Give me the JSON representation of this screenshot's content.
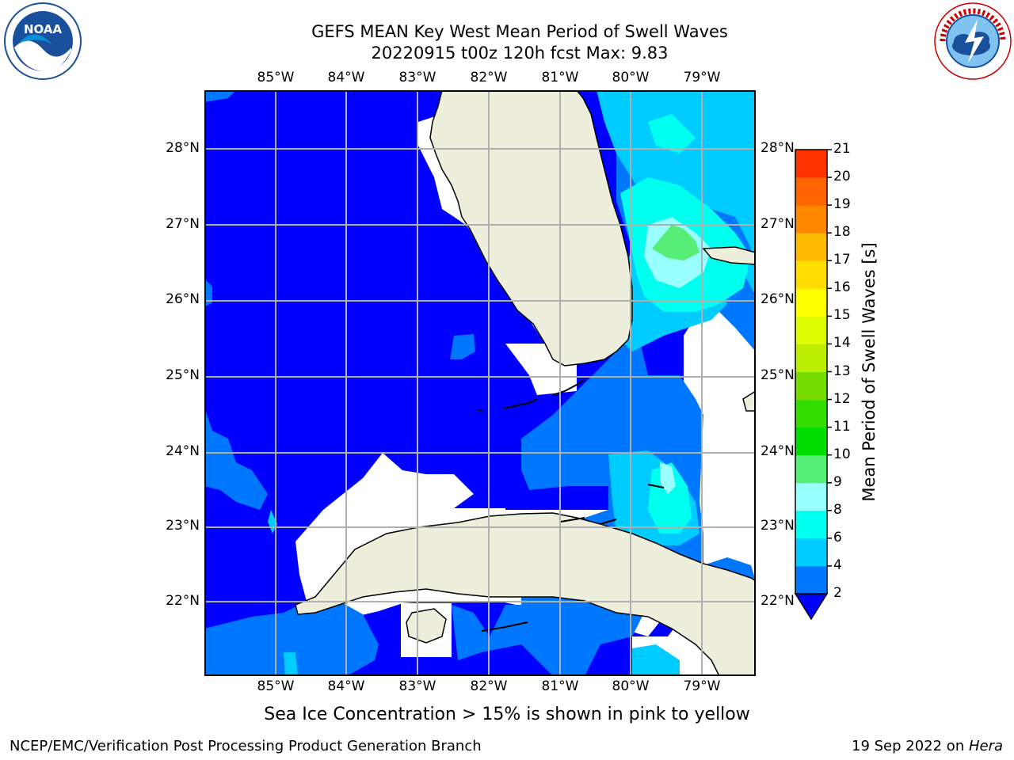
{
  "header": {
    "title_line1": "GEFS MEAN Key West Mean Period of Swell Waves",
    "title_line2": "20220915 t00z 120h fcst   Max: 9.83"
  },
  "logos": {
    "left_icon": "noaa-logo-icon",
    "right_icon": "national-weather-service-logo-icon"
  },
  "map": {
    "lon_labels": [
      "85°W",
      "84°W",
      "83°W",
      "82°W",
      "81°W",
      "80°W",
      "79°W"
    ],
    "lat_labels": [
      "28°N",
      "27°N",
      "26°N",
      "25°N",
      "24°N",
      "23°N",
      "22°N"
    ],
    "extent": {
      "lon": [
        -86.0,
        -78.3
      ],
      "lat": [
        21.05,
        28.75
      ]
    },
    "land_color": "#eeeedd",
    "grid_color": "#b0b0b0"
  },
  "colorbar": {
    "title": "Mean Period of Swell Waves [s]",
    "ticks": [
      "2",
      "4",
      "6",
      "8",
      "9",
      "10",
      "11",
      "12",
      "13",
      "14",
      "15",
      "16",
      "17",
      "18",
      "19",
      "20",
      "21"
    ],
    "colors": [
      "#0077ff",
      "#00ccff",
      "#00ffee",
      "#99ffff",
      "#55ee77",
      "#00dd00",
      "#33dd00",
      "#77dd00",
      "#bbee00",
      "#ddff00",
      "#ffff00",
      "#ffdd00",
      "#ffbb00",
      "#ff8800",
      "#ff6600",
      "#ff3300",
      "#ff0000"
    ],
    "under_color": "#0000ff"
  },
  "note": "Sea Ice Concentration > 15% is shown in pink to yellow",
  "footer": {
    "left": "NCEP/EMC/Verification Post Processing Product Generation Branch",
    "date": "19 Sep 2022 on ",
    "machine": "Hera"
  }
}
